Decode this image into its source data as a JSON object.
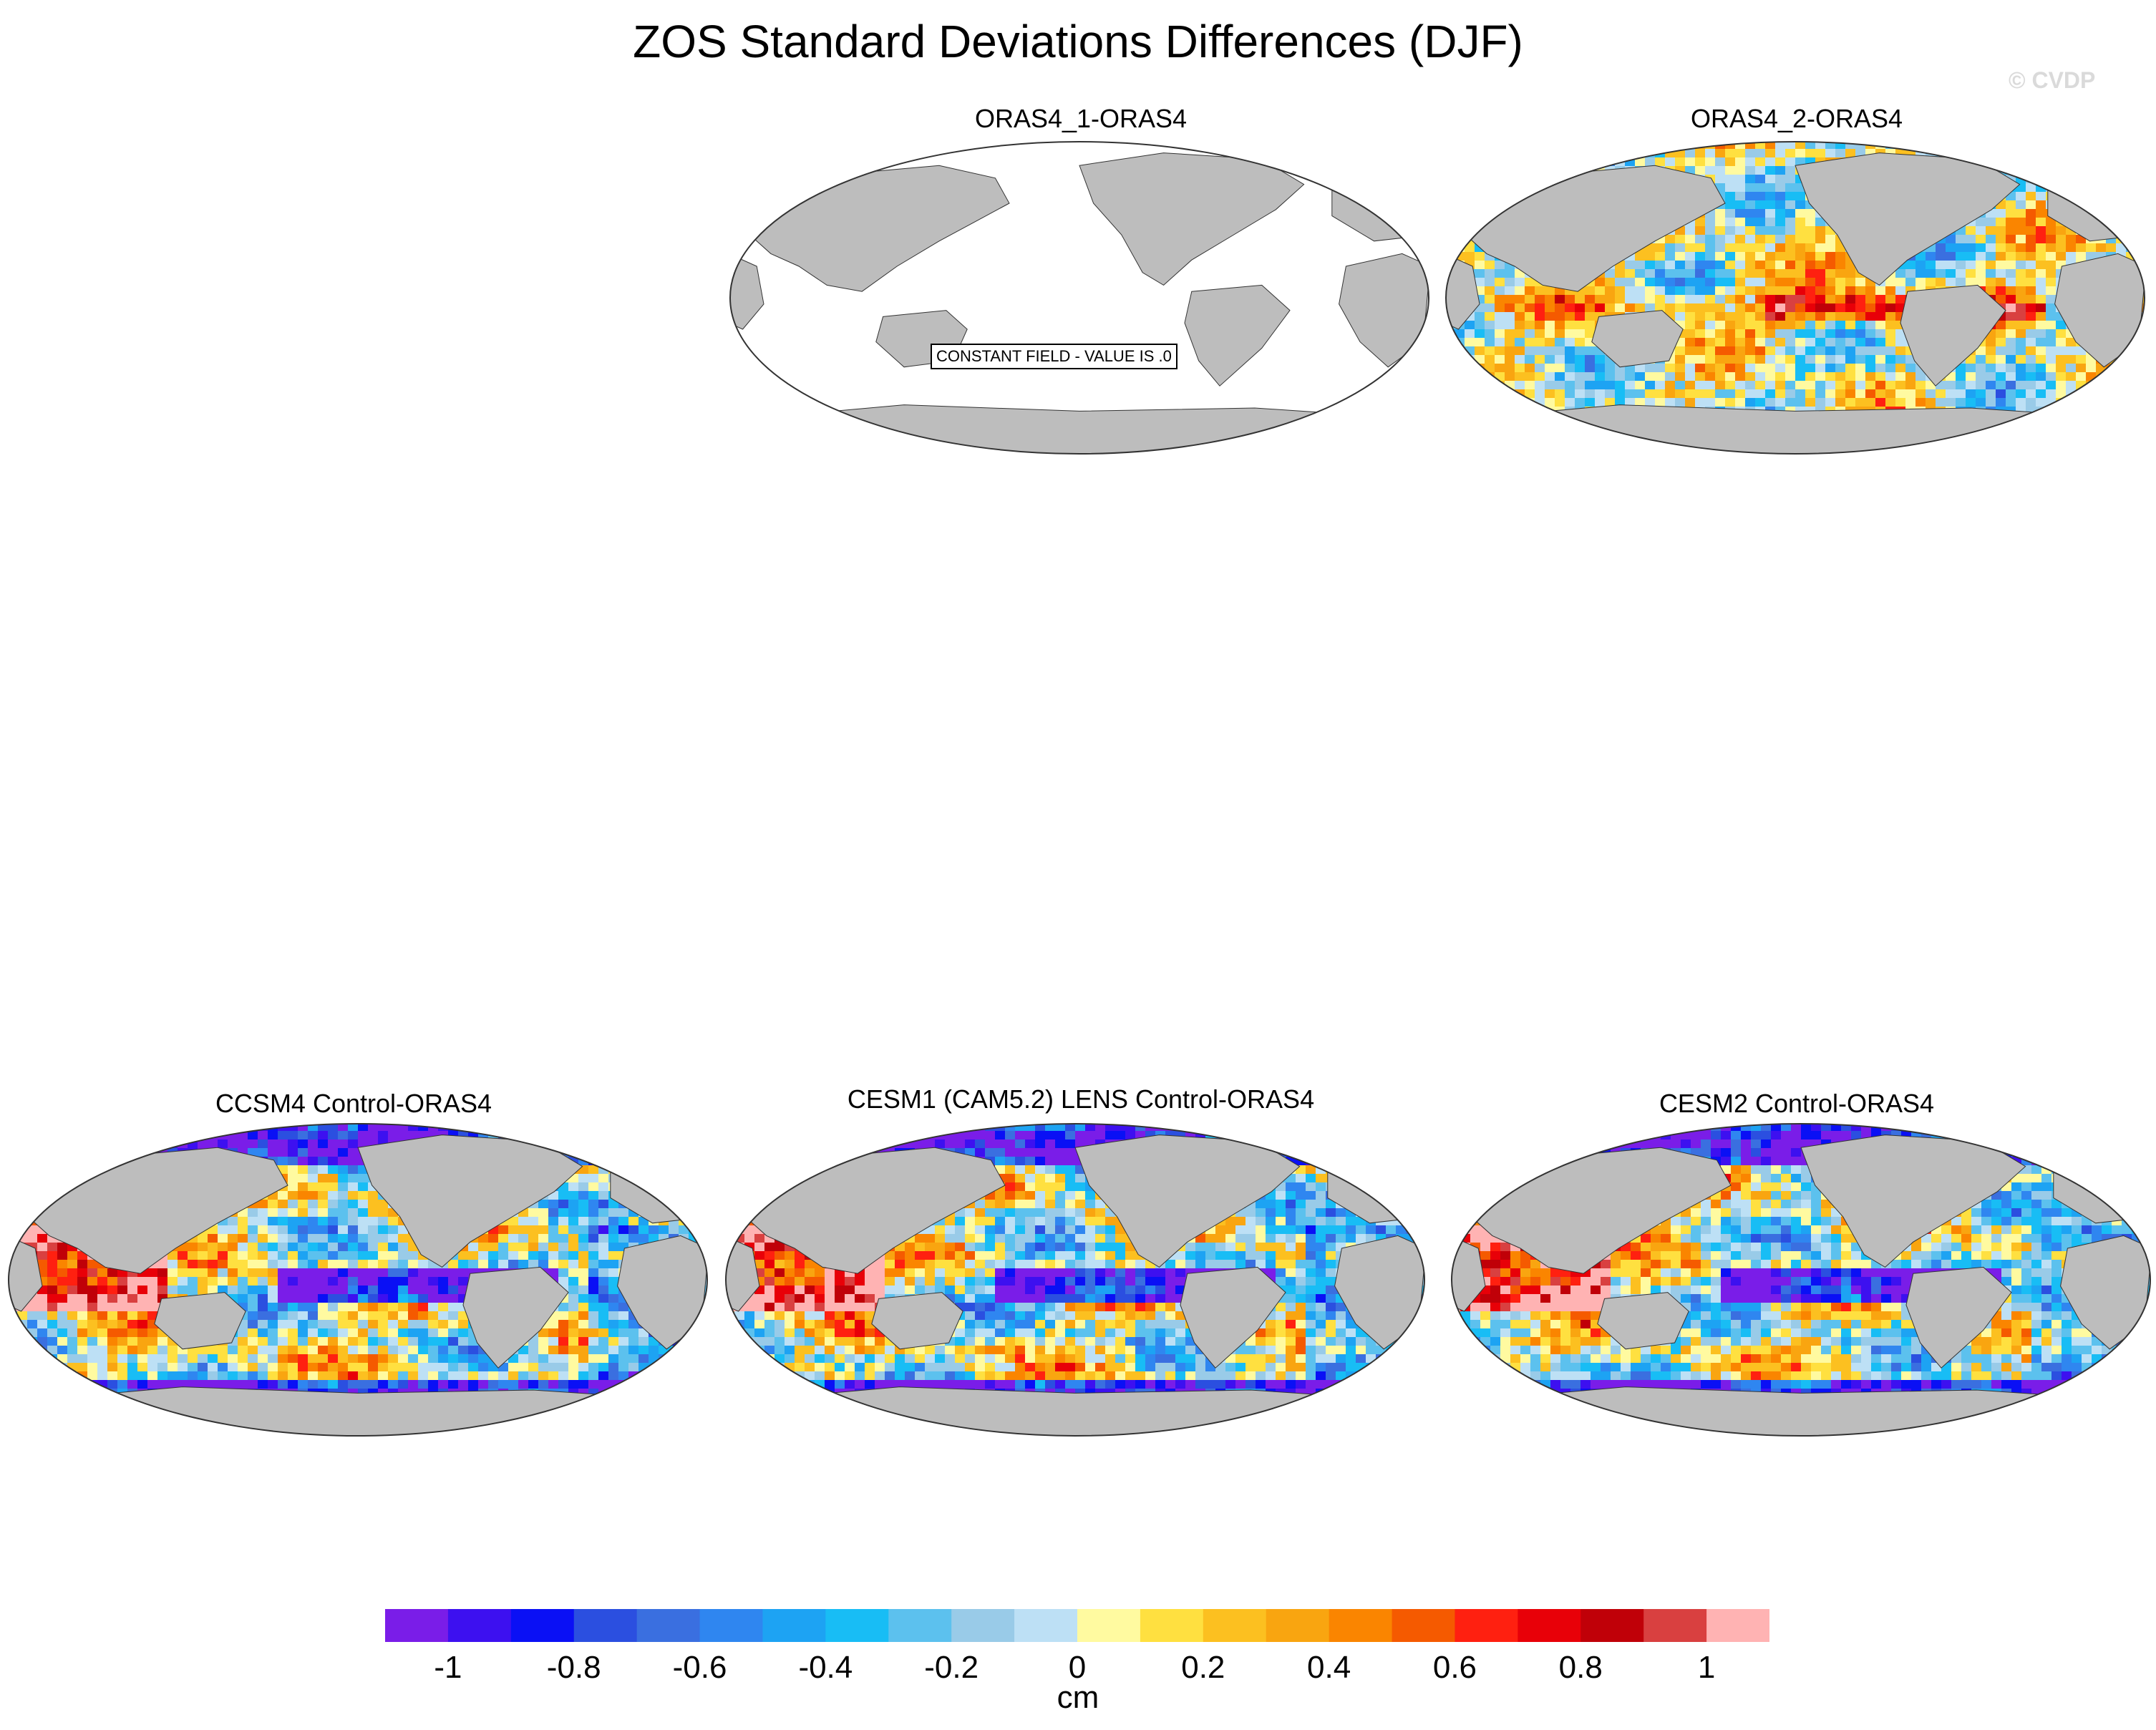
{
  "figure": {
    "title": "ZOS Standard Deviations Differences (DJF)",
    "watermark": "© CVDP"
  },
  "panels": [
    {
      "id": "p1",
      "title": "ORAS4_1-ORAS4",
      "pattern": "constant",
      "note": "CONSTANT FIELD - VALUE IS .0"
    },
    {
      "id": "p2",
      "title": "ORAS4_2-ORAS4",
      "pattern": "mixed"
    },
    {
      "id": "p3",
      "title": "CCSM4 Control-ORAS4",
      "pattern": "model"
    },
    {
      "id": "p4",
      "title": "CESM1 (CAM5.2) LENS Control-ORAS4",
      "pattern": "model"
    },
    {
      "id": "p5",
      "title": "CESM2 Control-ORAS4",
      "pattern": "model"
    }
  ],
  "colors": {
    "land": "#bdbdbd",
    "ocean_constant": "#ffffff",
    "outline": "#333333"
  },
  "colorbar": {
    "unit": "cm",
    "colors": [
      "#7a1de8",
      "#3d10f0",
      "#0a10f5",
      "#2b4fe0",
      "#3a6fe0",
      "#2f86f0",
      "#1da3f3",
      "#18bdf5",
      "#5cc1ee",
      "#99cbe8",
      "#bde0f5",
      "#fffaa0",
      "#ffe040",
      "#fcc020",
      "#f9a510",
      "#fa8500",
      "#f55a00",
      "#ff2010",
      "#e80008",
      "#c00008",
      "#d94040",
      "#ffb3b3"
    ],
    "tick_labels": [
      "-1",
      "-0.8",
      "-0.6",
      "-0.4",
      "-0.2",
      "0",
      "0.2",
      "0.4",
      "0.6",
      "0.8",
      "1"
    ]
  }
}
